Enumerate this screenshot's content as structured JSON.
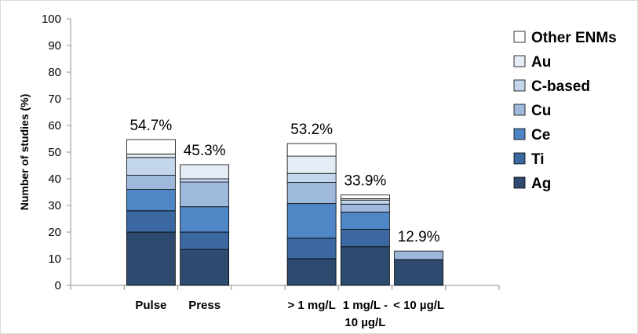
{
  "chart_data": {
    "type": "bar",
    "stacked": true,
    "title": "",
    "xlabel": "",
    "ylabel": "Number of studies (%)",
    "ylim": [
      0,
      100
    ],
    "yticks": [
      0,
      10,
      20,
      30,
      40,
      50,
      60,
      70,
      80,
      90,
      100
    ],
    "grid": false,
    "legend_position": "right",
    "category_slots": [
      "",
      "Pulse",
      "Press",
      "",
      "> 1 mg/L",
      "1 mg/L - 10 µg/L",
      "< 10 µg/L",
      ""
    ],
    "categories": [
      "Pulse",
      "Press",
      "> 1 mg/L",
      "1 mg/L - 10 µg/L",
      "< 10 µg/L"
    ],
    "category_label_lines": [
      [
        "Pulse"
      ],
      [
        "Press"
      ],
      [
        "> 1 mg/L"
      ],
      [
        "1 mg/L -",
        "10 µg/L"
      ],
      [
        "< 10 µg/L"
      ]
    ],
    "totals_labels": [
      "54.7%",
      "45.3%",
      "53.2%",
      "33.9%",
      "12.9%"
    ],
    "series": [
      {
        "name": "Ag",
        "color": "#2e4a6e",
        "values": [
          20.0,
          13.5,
          10.0,
          14.5,
          9.7
        ]
      },
      {
        "name": "Ti",
        "color": "#3b68a0",
        "values": [
          8.0,
          6.5,
          7.7,
          6.5,
          0.0
        ]
      },
      {
        "name": "Ce",
        "color": "#4f86c5",
        "values": [
          8.0,
          9.5,
          13.0,
          6.5,
          0.0
        ]
      },
      {
        "name": "Cu",
        "color": "#9fb9dd",
        "values": [
          5.3,
          9.3,
          8.0,
          3.0,
          3.2
        ]
      },
      {
        "name": "C-based",
        "color": "#c4d6ec",
        "values": [
          6.7,
          1.2,
          3.3,
          1.5,
          0.0
        ]
      },
      {
        "name": "Au",
        "color": "#e4ecf6",
        "values": [
          1.3,
          5.3,
          6.5,
          0.5,
          0.0
        ]
      },
      {
        "name": "Other ENMs",
        "color": "#ffffff",
        "values": [
          5.4,
          0.0,
          4.7,
          1.4,
          0.0
        ]
      }
    ]
  }
}
